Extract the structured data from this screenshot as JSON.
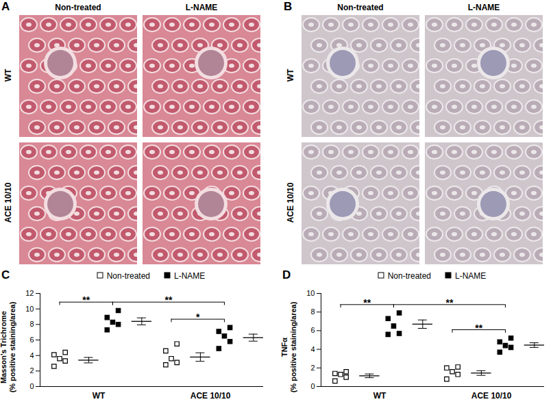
{
  "panels": [
    {
      "title": "A",
      "columns": [
        "Non-treated",
        "L-NAME"
      ],
      "rows": [
        "WT",
        "ACE 10/10"
      ]
    },
    {
      "title": "B",
      "columns": [
        "Non-treated",
        "L-NAME"
      ],
      "rows": [
        "WT",
        "ACE 10/10"
      ]
    }
  ],
  "chart_data": [
    {
      "title": "C",
      "type": "scatter",
      "y_label": "Masson's Trichrome\n(% positive staining/area)",
      "categories": [
        "WT",
        "ACE 10/10"
      ],
      "ylim": [
        0,
        12
      ],
      "yticks": [
        0,
        2,
        4,
        6,
        8,
        10,
        12
      ],
      "legend": "top",
      "series": [
        {
          "name": "Non-treated",
          "color": "#000000",
          "marker": "square_open",
          "values": [
            [
              2.6,
              3.3,
              3.6,
              4.1,
              4.4
            ],
            [
              2.8,
              3.1,
              3.6,
              4.6,
              5.5
            ]
          ],
          "mean": [
            3.4,
            3.8
          ],
          "sem": [
            0.35,
            0.55
          ]
        },
        {
          "name": "L-NAME",
          "color": "#000000",
          "marker": "square",
          "values": [
            [
              7.3,
              8.0,
              8.3,
              8.9,
              9.8
            ],
            [
              4.9,
              5.8,
              6.5,
              7.1,
              7.6
            ]
          ],
          "mean": [
            8.4,
            6.3
          ],
          "sem": [
            0.45,
            0.45
          ]
        }
      ],
      "comparisons": [
        {
          "from": [
            "WT",
            "Non-treated"
          ],
          "to": [
            "WT",
            "L-NAME"
          ],
          "label": "**"
        },
        {
          "from": [
            "WT",
            "L-NAME"
          ],
          "to": [
            "ACE 10/10",
            "L-NAME"
          ],
          "label": "**"
        },
        {
          "from": [
            "ACE 10/10",
            "Non-treated"
          ],
          "to": [
            "ACE 10/10",
            "L-NAME"
          ],
          "label": "*"
        }
      ]
    },
    {
      "title": "D",
      "type": "scatter",
      "y_label": "TNFα\n(% positive staining/area)",
      "categories": [
        "WT",
        "ACE 10/10"
      ],
      "ylim": [
        0,
        10
      ],
      "yticks": [
        0,
        2,
        4,
        6,
        8,
        10
      ],
      "legend": "top",
      "series": [
        {
          "name": "Non-treated",
          "color": "#000000",
          "marker": "square_open",
          "values": [
            [
              0.6,
              1.0,
              1.3,
              1.4,
              1.6
            ],
            [
              0.8,
              1.3,
              1.6,
              2.0,
              2.1
            ]
          ],
          "mean": [
            1.15,
            1.45
          ],
          "sem": [
            0.2,
            0.25
          ]
        },
        {
          "name": "L-NAME",
          "color": "#000000",
          "marker": "square",
          "values": [
            [
              5.6,
              5.7,
              6.5,
              7.3,
              7.9
            ],
            [
              3.7,
              4.2,
              4.4,
              4.8,
              5.2
            ]
          ],
          "mean": [
            6.7,
            4.45
          ],
          "sem": [
            0.45,
            0.25
          ]
        }
      ],
      "comparisons": [
        {
          "from": [
            "WT",
            "Non-treated"
          ],
          "to": [
            "WT",
            "L-NAME"
          ],
          "label": "**"
        },
        {
          "from": [
            "WT",
            "L-NAME"
          ],
          "to": [
            "ACE 10/10",
            "L-NAME"
          ],
          "label": "**"
        },
        {
          "from": [
            "ACE 10/10",
            "Non-treated"
          ],
          "to": [
            "ACE 10/10",
            "L-NAME"
          ],
          "label": "**"
        }
      ]
    }
  ]
}
